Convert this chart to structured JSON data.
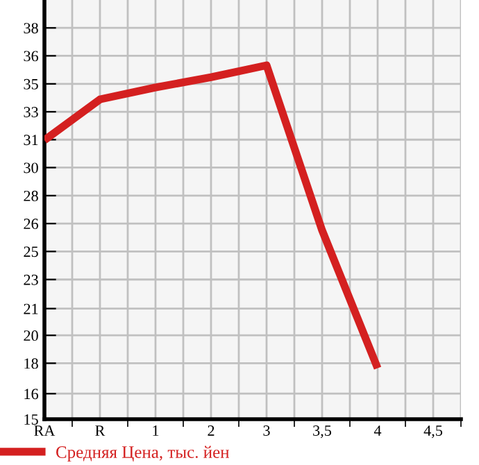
{
  "chart_data": {
    "type": "line",
    "categories": [
      "RA",
      "R",
      "1",
      "2",
      "3",
      "3,5",
      "4",
      "4,5"
    ],
    "series": [
      {
        "name": "Средняя Цена, тыс. йен",
        "color": "#d42020",
        "values": [
          31.4,
          33.8,
          34.5,
          35.1,
          35.8,
          26.1,
          18.0,
          null
        ]
      }
    ],
    "ylim": [
      15,
      39.64
    ],
    "yticks": [
      15,
      {
        "value": 16.5,
        "label": "16"
      },
      {
        "value": 18.29,
        "label": "18"
      },
      {
        "value": 19.93,
        "label": "20"
      },
      {
        "value": 21.5,
        "label": "21"
      },
      {
        "value": 23.21,
        "label": "23"
      },
      {
        "value": 24.86,
        "label": "25"
      },
      {
        "value": 26.5,
        "label": "26"
      },
      {
        "value": 28.14,
        "label": "28"
      },
      {
        "value": 29.79,
        "label": "30"
      },
      {
        "value": 31.43,
        "label": "31"
      },
      {
        "value": 33.07,
        "label": "33"
      },
      {
        "value": 34.71,
        "label": "35"
      },
      {
        "value": 36.36,
        "label": "36"
      },
      38
    ],
    "grid": true,
    "legend": "bottom left",
    "marker": "none",
    "line_style": "solid"
  }
}
